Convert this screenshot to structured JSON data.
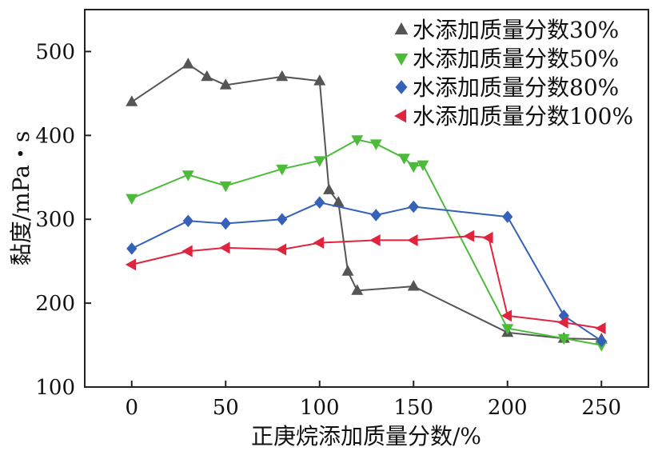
{
  "chart_data": {
    "type": "line",
    "title": "",
    "xlabel": "正庚烷添加质量分数/%",
    "ylabel": "黏度/mPa・s",
    "xlim": [
      -25,
      275
    ],
    "ylim": [
      100,
      550
    ],
    "xticks": [
      0,
      50,
      100,
      150,
      200,
      250
    ],
    "yticks": [
      100,
      200,
      300,
      400,
      500
    ],
    "grid": false,
    "legend_position": "top-right",
    "series": [
      {
        "name": "水添加质量分数30%",
        "marker": "triangle-up",
        "color": "#555555",
        "x": [
          0,
          30,
          40,
          50,
          80,
          100,
          105,
          110,
          115,
          120,
          150,
          200,
          230,
          250
        ],
        "y": [
          440,
          485,
          470,
          460,
          470,
          465,
          335,
          320,
          238,
          215,
          220,
          165,
          158,
          157
        ]
      },
      {
        "name": "水添加质量分数50%",
        "marker": "triangle-down",
        "color": "#4cbb3a",
        "x": [
          0,
          30,
          50,
          80,
          100,
          120,
          130,
          145,
          150,
          155,
          200,
          230,
          250
        ],
        "y": [
          325,
          353,
          340,
          360,
          370,
          395,
          390,
          373,
          363,
          365,
          170,
          158,
          150
        ]
      },
      {
        "name": "水添加质量分数80%",
        "marker": "diamond",
        "color": "#3561b8",
        "x": [
          0,
          30,
          50,
          80,
          100,
          130,
          150,
          200,
          230,
          250
        ],
        "y": [
          265,
          298,
          295,
          300,
          320,
          305,
          315,
          303,
          185,
          155
        ]
      },
      {
        "name": "水添加质量分数100%",
        "marker": "triangle-left",
        "color": "#e0243e",
        "x": [
          0,
          30,
          50,
          80,
          100,
          130,
          150,
          180,
          190,
          200,
          230,
          250
        ],
        "y": [
          246,
          262,
          266,
          264,
          272,
          275,
          275,
          280,
          278,
          185,
          177,
          170
        ]
      }
    ]
  }
}
